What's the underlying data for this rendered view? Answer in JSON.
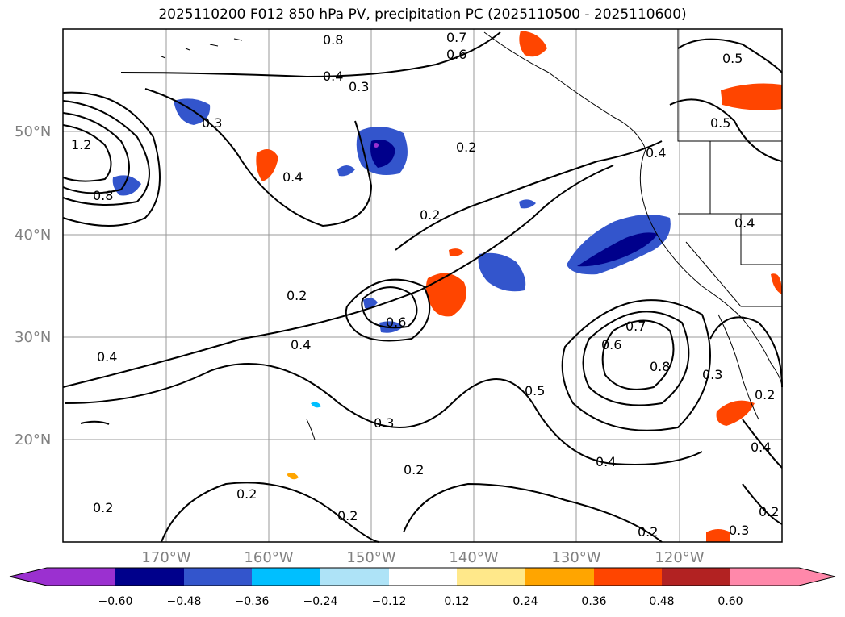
{
  "title": "2025110200 F012 850 hPa PV, precipitation PC (2025110500 - 2025110600)",
  "map": {
    "lon_range": [
      -180,
      -110
    ],
    "lat_range": [
      10,
      60
    ],
    "lat_labels": [
      "20°N",
      "30°N",
      "40°N",
      "50°N"
    ],
    "lon_labels": [
      "170°W",
      "160°W",
      "150°W",
      "140°W",
      "130°W",
      "120°W"
    ],
    "contour_labels": [
      "0.2",
      "0.3",
      "0.4",
      "0.5",
      "0.6",
      "0.7",
      "0.8",
      "1.2"
    ]
  },
  "colorbar": {
    "ticks": [
      "−0.60",
      "−0.48",
      "−0.36",
      "−0.24",
      "−0.12",
      "0.12",
      "0.24",
      "0.36",
      "0.48",
      "0.60"
    ],
    "colors": [
      "#9b30d0",
      "#00008b",
      "#3355cc",
      "#00bfff",
      "#aee3f7",
      "#ffffff",
      "#ffe88a",
      "#ffa500",
      "#ff4500",
      "#b22222",
      "#ff88aa"
    ]
  }
}
